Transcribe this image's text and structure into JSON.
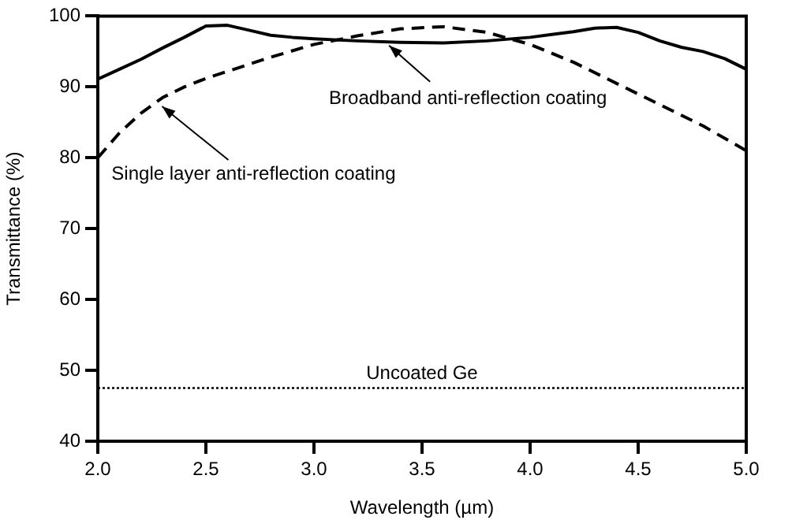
{
  "chart_data": {
    "type": "line",
    "xlabel": "Wavelength (µm)",
    "ylabel": "Transmittance (%)",
    "xlim": [
      2.0,
      5.0
    ],
    "xticks": [
      {
        "value": 2,
        "label": "2.0"
      },
      {
        "value": 2.5,
        "label": "2.5"
      },
      {
        "value": 3,
        "label": "3.0"
      },
      {
        "value": 3.5,
        "label": "3.5"
      },
      {
        "value": 4,
        "label": "4.0"
      },
      {
        "value": 4.5,
        "label": "4.5"
      },
      {
        "value": 5,
        "label": "5.0"
      }
    ],
    "ylim": [
      40,
      100
    ],
    "yticks": [
      40,
      50,
      60,
      70,
      80,
      90,
      100
    ],
    "grid": false,
    "legend": false,
    "marker": "none",
    "series": [
      {
        "color": "#000000",
        "line_style": "solid",
        "x": [
          2.0,
          2.1,
          2.2,
          2.3,
          2.4,
          2.5,
          2.6,
          2.7,
          2.8,
          2.9,
          3.0,
          3.2,
          3.4,
          3.6,
          3.8,
          4.0,
          4.1,
          4.2,
          4.3,
          4.4,
          4.5,
          4.6,
          4.7,
          4.8,
          4.9,
          5.0
        ],
        "values": [
          91.1,
          92.5,
          93.9,
          95.5,
          97,
          98.6,
          98.7,
          98,
          97.3,
          97,
          96.8,
          96.5,
          96.3,
          96.2,
          96.5,
          97,
          97.4,
          97.8,
          98.3,
          98.4,
          97.7,
          96.5,
          95.6,
          95,
          94,
          92.5
        ]
      },
      {
        "color": "#000000",
        "line_style": "dashed",
        "x": [
          2.0,
          2.1,
          2.2,
          2.3,
          2.4,
          2.5,
          2.6,
          2.8,
          3.0,
          3.2,
          3.4,
          3.6,
          3.8,
          4.0,
          4.2,
          4.4,
          4.6,
          4.8,
          5.0
        ],
        "values": [
          80,
          83.5,
          86.3,
          88.5,
          90,
          91.2,
          92.2,
          94.2,
          96,
          97.2,
          98.2,
          98.5,
          97.7,
          96,
          93.5,
          90.5,
          87.5,
          84.5,
          81
        ]
      },
      {
        "color": "#000000",
        "line_style": "dotted",
        "x": [
          2.0,
          5.0
        ],
        "values": [
          47.5,
          47.5
        ]
      }
    ],
    "annotations": [
      {
        "text": "Broadband anti-reflection coating",
        "x": 3.34,
        "y": 96.3
      },
      {
        "text": "Single layer anti-reflection coating",
        "x": 2.29,
        "y": 87.7
      },
      {
        "text": "Uncoated Ge",
        "x": 3.5,
        "y": 47.5
      }
    ]
  }
}
